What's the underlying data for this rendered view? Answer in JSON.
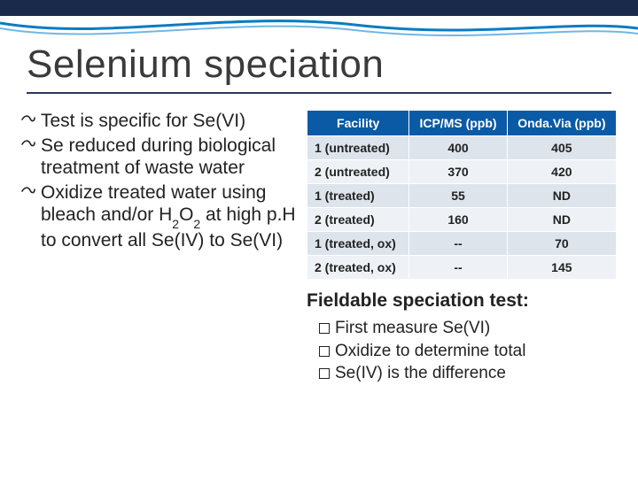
{
  "title": "Selenium speciation",
  "bullets": [
    {
      "text": "Test is specific for Se(VI)"
    },
    {
      "text": "Se reduced during biological treatment of waste water"
    },
    {
      "text": "Oxidize treated water using bleach and/or H2O2 at high p.H to convert all Se(IV) to Se(VI)",
      "html": "Oxidize treated water using bleach and/or H<span class=\"sub\">2</span>O<span class=\"sub\">2</span> at high p.H to convert all Se(IV) to Se(VI)"
    }
  ],
  "table": {
    "headers": [
      "Facility",
      "ICP/MS (ppb)",
      "Onda.Via (ppb)"
    ],
    "rows": [
      [
        "1 (untreated)",
        "400",
        "405"
      ],
      [
        "2 (untreated)",
        "370",
        "420"
      ],
      [
        "1 (treated)",
        "55",
        "ND"
      ],
      [
        "2 (treated)",
        "160",
        "ND"
      ],
      [
        "1 (treated, ox)",
        "--",
        "70"
      ],
      [
        "2 (treated, ox)",
        "--",
        "145"
      ]
    ]
  },
  "fieldable_heading": "Fieldable speciation test:",
  "checks": [
    "First measure Se(VI)",
    "Oxidize to determine total",
    "Se(IV) is the difference"
  ],
  "colors": {
    "topbar": "#1a2a4a",
    "wave": "#0a7bc4",
    "table_header_bg": "#0a5aa6",
    "row_odd": "#dde4ec",
    "row_even": "#eef2f6"
  }
}
